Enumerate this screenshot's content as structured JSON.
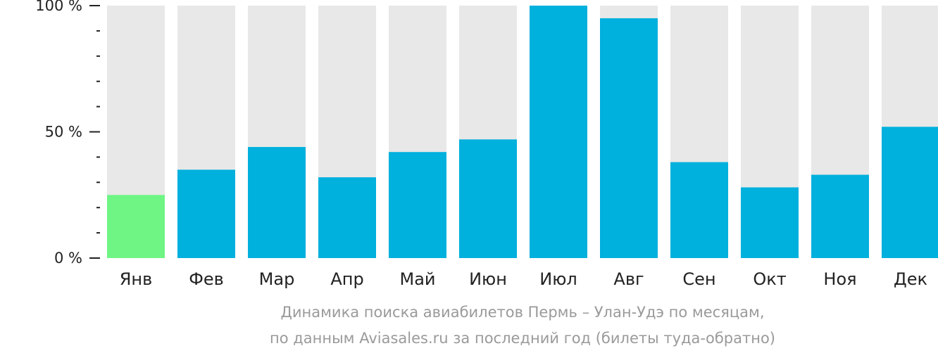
{
  "chart_data": {
    "type": "bar",
    "categories": [
      "Янв",
      "Фев",
      "Мар",
      "Апр",
      "Май",
      "Июн",
      "Июл",
      "Авг",
      "Сен",
      "Окт",
      "Ноя",
      "Дек"
    ],
    "values": [
      25,
      35,
      44,
      32,
      42,
      47,
      100,
      95,
      38,
      28,
      33,
      52
    ],
    "highlight_index": 0,
    "ylim": [
      0,
      100
    ],
    "yticks": [
      {
        "value": 0,
        "label": "0 %"
      },
      {
        "value": 50,
        "label": "50 %"
      },
      {
        "value": 100,
        "label": "100 %"
      }
    ],
    "minor_tick_step": 10,
    "caption_line1": "Динамика поиска авиабилетов Пермь – Улан-Удэ по месяцам,",
    "caption_line2": "по данным Aviasales.ru за последний год (билеты туда-обратно)",
    "colors": {
      "bar": "#00b0dd",
      "highlight": "#6ef584",
      "background_bar": "#e8e8e8",
      "axis": "#222222",
      "caption": "#9a9a9a"
    }
  }
}
